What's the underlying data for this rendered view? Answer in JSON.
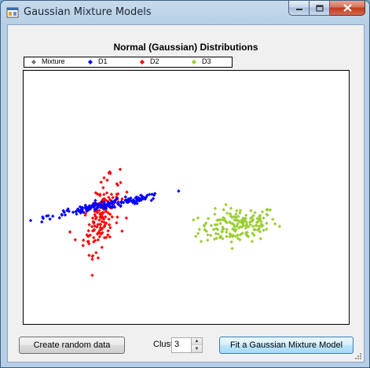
{
  "window": {
    "title": "Gaussian Mixture Models"
  },
  "caption_buttons": {
    "minimize": "minimize-icon",
    "maximize": "maximize-icon",
    "close": "close-icon"
  },
  "chart_data": {
    "type": "scatter",
    "title": "Normal (Gaussian) Distributions",
    "legend_placement": "top",
    "grid": false,
    "xlim": [
      0,
      1
    ],
    "ylim": [
      0,
      1
    ],
    "series": [
      {
        "name": "Mixture",
        "color": "#707070",
        "points": []
      },
      {
        "name": "D1",
        "color": "#0000ff",
        "cluster": {
          "n": 180,
          "center": [
            0.26,
            0.47
          ],
          "spread": [
            0.09,
            0.022
          ],
          "rho": 0.93
        }
      },
      {
        "name": "D2",
        "color": "#ff0000",
        "cluster": {
          "n": 150,
          "center": [
            0.24,
            0.43
          ],
          "spread": [
            0.028,
            0.07
          ],
          "rho": 0.55
        }
      },
      {
        "name": "D3",
        "color": "#9acd32",
        "cluster": {
          "n": 170,
          "center": [
            0.66,
            0.39
          ],
          "spread": [
            0.06,
            0.035
          ],
          "rho": 0.2
        }
      }
    ]
  },
  "controls": {
    "create_button": "Create random data",
    "clusters_label": "Clusters:",
    "clusters_value": "3",
    "fit_button": "Fit a Gaussian Mixture Model"
  }
}
